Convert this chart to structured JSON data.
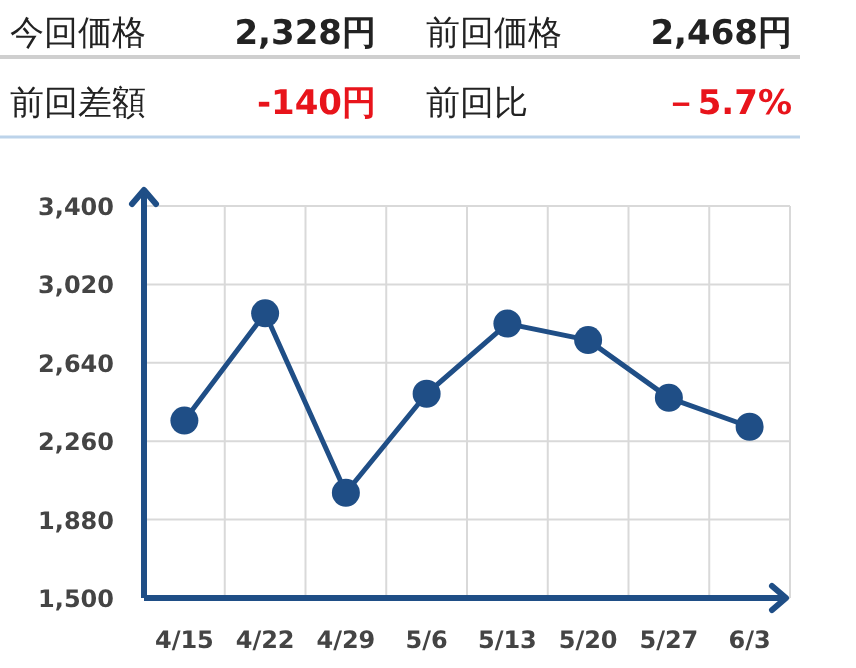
{
  "chart_data": [
    {
      "type": "other",
      "annotations": [
        "今回価格",
        "2,328円",
        "前回価格",
        "2,468円",
        "前回差額",
        "-140円",
        "前回比",
        "－5.7%"
      ]
    },
    {
      "type": "line",
      "categories": [
        "4/15",
        "4/22",
        "4/29",
        "5/6",
        "5/13",
        "5/20",
        "5/27",
        "6/3"
      ],
      "series": [
        {
          "color": "#1f4e86",
          "values": [
            2360,
            2880,
            2010,
            2490,
            2830,
            2750,
            2470,
            2330
          ]
        }
      ],
      "ylim": [
        1500,
        3400
      ],
      "yticks": [
        {
          "value": 1500,
          "label": "1,500"
        },
        {
          "value": 1880,
          "label": "1,880"
        },
        {
          "value": 2260,
          "label": "2,260"
        },
        {
          "value": 2640,
          "label": "2,640"
        },
        {
          "value": 3020,
          "label": "3,020"
        },
        {
          "value": 3400,
          "label": "3,400"
        }
      ],
      "grid": true,
      "marker": "circle",
      "line_style": "solid"
    }
  ]
}
